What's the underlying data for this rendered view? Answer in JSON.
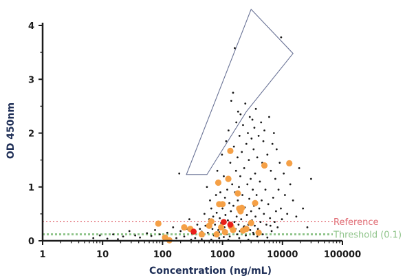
{
  "chart_data": {
    "type": "scatter",
    "title": "",
    "xlabel": "Concentration (ng/mL)",
    "ylabel": "OD 450nm",
    "x_scale": "log",
    "xlim": [
      1,
      100000
    ],
    "ylim": [
      0,
      4
    ],
    "x_ticks": [
      1,
      10,
      100,
      1000,
      10000,
      100000
    ],
    "x_tick_labels": [
      "1",
      "10",
      "100",
      "1000",
      "10000",
      "100000"
    ],
    "y_ticks": [
      0,
      1,
      2,
      3,
      4
    ],
    "y_tick_labels": [
      "0",
      "1",
      "2",
      "3",
      "4"
    ],
    "grid": false,
    "colors": {
      "axis": "#1b1b1b",
      "small_points": "#1a1a1a",
      "orange_points": "#f5a046",
      "red_points": "#e8201b",
      "reference": "#e06a72",
      "threshold": "#8fc48a",
      "polygon": "#6a7396"
    },
    "reference_lines": [
      {
        "label": "Reference",
        "y": 0.36,
        "color": "#e06a72"
      },
      {
        "label": "Threshold (0.1)",
        "y": 0.12,
        "color": "#8fc48a"
      }
    ],
    "polygon": {
      "points": [
        [
          250,
          1.23
        ],
        [
          550,
          1.23
        ],
        [
          2500,
          2.4
        ],
        [
          15000,
          3.48
        ],
        [
          3000,
          4.3
        ]
      ]
    },
    "series": [
      {
        "marker": "orange",
        "points": [
          [
            85,
            0.32
          ],
          [
            110,
            0.06
          ],
          [
            130,
            0.01
          ],
          [
            230,
            0.25
          ],
          [
            290,
            0.22
          ],
          [
            450,
            0.12
          ],
          [
            600,
            0.28
          ],
          [
            650,
            0.36
          ],
          [
            800,
            0.12
          ],
          [
            850,
            1.08
          ],
          [
            880,
            0.68
          ],
          [
            950,
            0.25
          ],
          [
            1000,
            0.68
          ],
          [
            1100,
            0.16
          ],
          [
            1250,
            1.15
          ],
          [
            1350,
            1.67
          ],
          [
            1400,
            0.26
          ],
          [
            1500,
            0.2
          ],
          [
            1800,
            0.88
          ],
          [
            1900,
            0.6
          ],
          [
            2000,
            0.55
          ],
          [
            2100,
            0.61
          ],
          [
            2200,
            0.19
          ],
          [
            2500,
            0.22
          ],
          [
            3000,
            0.33
          ],
          [
            3500,
            0.7
          ],
          [
            4000,
            0.15
          ],
          [
            5000,
            1.4
          ],
          [
            13000,
            1.44
          ]
        ]
      },
      {
        "marker": "red",
        "points": [
          [
            330,
            0.17
          ],
          [
            1050,
            0.35
          ],
          [
            1350,
            0.3
          ]
        ]
      },
      {
        "marker": "small",
        "points": [
          [
            7,
            0.05
          ],
          [
            9,
            0.1
          ],
          [
            12,
            0.04
          ],
          [
            15,
            0.12
          ],
          [
            18,
            0.03
          ],
          [
            22,
            0.08
          ],
          [
            28,
            0.18
          ],
          [
            35,
            0.1
          ],
          [
            42,
            0.06
          ],
          [
            55,
            0.14
          ],
          [
            65,
            0.09
          ],
          [
            75,
            0.2
          ],
          [
            90,
            0.12
          ],
          [
            120,
            0.15
          ],
          [
            150,
            0.25
          ],
          [
            170,
            0.05
          ],
          [
            190,
            1.25
          ],
          [
            200,
            0.18
          ],
          [
            230,
            0.08
          ],
          [
            260,
            0.22
          ],
          [
            280,
            0.4
          ],
          [
            310,
            0.14
          ],
          [
            350,
            0.05
          ],
          [
            380,
            0.3
          ],
          [
            420,
            0.22
          ],
          [
            450,
            0.17
          ],
          [
            480,
            0.09
          ],
          [
            500,
            0.5
          ],
          [
            520,
            0.28
          ],
          [
            550,
            1.0
          ],
          [
            570,
            0.15
          ],
          [
            600,
            0.4
          ],
          [
            620,
            0.75
          ],
          [
            650,
            0.6
          ],
          [
            680,
            0.22
          ],
          [
            700,
            0.45
          ],
          [
            720,
            0.1
          ],
          [
            750,
            0.3
          ],
          [
            780,
            0.85
          ],
          [
            800,
            0.52
          ],
          [
            820,
            1.3
          ],
          [
            850,
            0.2
          ],
          [
            880,
            0.05
          ],
          [
            900,
            0.42
          ],
          [
            920,
            0.9
          ],
          [
            950,
            0.33
          ],
          [
            980,
            1.6
          ],
          [
            1000,
            0.6
          ],
          [
            1020,
            0.15
          ],
          [
            1050,
            1.2
          ],
          [
            1080,
            0.25
          ],
          [
            1100,
            0.8
          ],
          [
            1120,
            0.48
          ],
          [
            1150,
            1.85
          ],
          [
            1180,
            0.12
          ],
          [
            1200,
            0.95
          ],
          [
            1230,
            0.38
          ],
          [
            1260,
            2.05
          ],
          [
            1300,
            0.7
          ],
          [
            1320,
            0.08
          ],
          [
            1350,
            1.45
          ],
          [
            1380,
            0.55
          ],
          [
            1400,
            2.6
          ],
          [
            1420,
            0.28
          ],
          [
            1450,
            1.05
          ],
          [
            1480,
            0.18
          ],
          [
            1500,
            2.75
          ],
          [
            1520,
            0.65
          ],
          [
            1550,
            1.75
          ],
          [
            1580,
            0.35
          ],
          [
            1600,
            3.58
          ],
          [
            1620,
            0.9
          ],
          [
            1650,
            0.22
          ],
          [
            1680,
            1.3
          ],
          [
            1700,
            2.2
          ],
          [
            1720,
            0.45
          ],
          [
            1750,
            0.12
          ],
          [
            1780,
            1.55
          ],
          [
            1800,
            0.75
          ],
          [
            1820,
            2.4
          ],
          [
            1850,
            0.3
          ],
          [
            1880,
            1.0
          ],
          [
            1900,
            0.55
          ],
          [
            1920,
            1.95
          ],
          [
            1950,
            0.18
          ],
          [
            1980,
            1.2
          ],
          [
            2000,
            2.35
          ],
          [
            2050,
            0.4
          ],
          [
            2100,
            1.65
          ],
          [
            2150,
            0.85
          ],
          [
            2200,
            2.15
          ],
          [
            2250,
            0.25
          ],
          [
            2300,
            1.35
          ],
          [
            2350,
            0.62
          ],
          [
            2400,
            2.55
          ],
          [
            2450,
            0.1
          ],
          [
            2500,
            1.8
          ],
          [
            2550,
            0.48
          ],
          [
            2600,
            1.05
          ],
          [
            2650,
            2.0
          ],
          [
            2700,
            0.3
          ],
          [
            2750,
            1.5
          ],
          [
            2800,
            0.78
          ],
          [
            2850,
            2.3
          ],
          [
            2900,
            0.2
          ],
          [
            2950,
            1.15
          ],
          [
            3000,
            0.55
          ],
          [
            3050,
            1.9
          ],
          [
            3100,
            0.38
          ],
          [
            3150,
            2.25
          ],
          [
            3200,
            0.95
          ],
          [
            3250,
            0.15
          ],
          [
            3300,
            1.7
          ],
          [
            3350,
            0.65
          ],
          [
            3400,
            2.1
          ],
          [
            3450,
            0.28
          ],
          [
            3500,
            1.25
          ],
          [
            3550,
            0.45
          ],
          [
            3600,
            2.45
          ],
          [
            3700,
            0.85
          ],
          [
            3800,
            1.55
          ],
          [
            3900,
            0.22
          ],
          [
            4000,
            1.95
          ],
          [
            4100,
            0.6
          ],
          [
            4200,
            1.1
          ],
          [
            4300,
            0.35
          ],
          [
            4400,
            2.2
          ],
          [
            4500,
            0.75
          ],
          [
            4600,
            1.45
          ],
          [
            4700,
            0.12
          ],
          [
            4800,
            1.85
          ],
          [
            4900,
            0.5
          ],
          [
            5000,
            2.05
          ],
          [
            5200,
            0.95
          ],
          [
            5400,
            0.3
          ],
          [
            5600,
            1.6
          ],
          [
            5800,
            0.68
          ],
          [
            6000,
            2.3
          ],
          [
            6200,
            0.42
          ],
          [
            6400,
            1.3
          ],
          [
            6600,
            0.18
          ],
          [
            6800,
            1.8
          ],
          [
            7000,
            0.8
          ],
          [
            7200,
            2.0
          ],
          [
            7400,
            0.35
          ],
          [
            7600,
            1.15
          ],
          [
            7800,
            0.55
          ],
          [
            8000,
            1.7
          ],
          [
            8300,
            0.25
          ],
          [
            8600,
            0.95
          ],
          [
            9000,
            1.45
          ],
          [
            9400,
            0.6
          ],
          [
            9800,
            0.4
          ],
          [
            10500,
            1.25
          ],
          [
            11000,
            0.85
          ],
          [
            12000,
            0.5
          ],
          [
            13500,
            1.05
          ],
          [
            15000,
            0.75
          ],
          [
            17000,
            0.45
          ],
          [
            19000,
            1.35
          ],
          [
            22000,
            0.6
          ],
          [
            26000,
            0.25
          ],
          [
            30000,
            1.15
          ],
          [
            9500,
            3.78
          ],
          [
            3800,
            0.08
          ],
          [
            2700,
            0.02
          ],
          [
            1900,
            0.05
          ],
          [
            2300,
            0.27
          ],
          [
            3300,
            0.12
          ],
          [
            4200,
            0.18
          ],
          [
            5600,
            0.06
          ],
          [
            6300,
            0.28
          ],
          [
            1250,
            0.02
          ],
          [
            1050,
            0.07
          ],
          [
            880,
            0.16
          ],
          [
            650,
            0.02
          ],
          [
            450,
            0.03
          ],
          [
            300,
            0.02
          ]
        ]
      }
    ]
  }
}
